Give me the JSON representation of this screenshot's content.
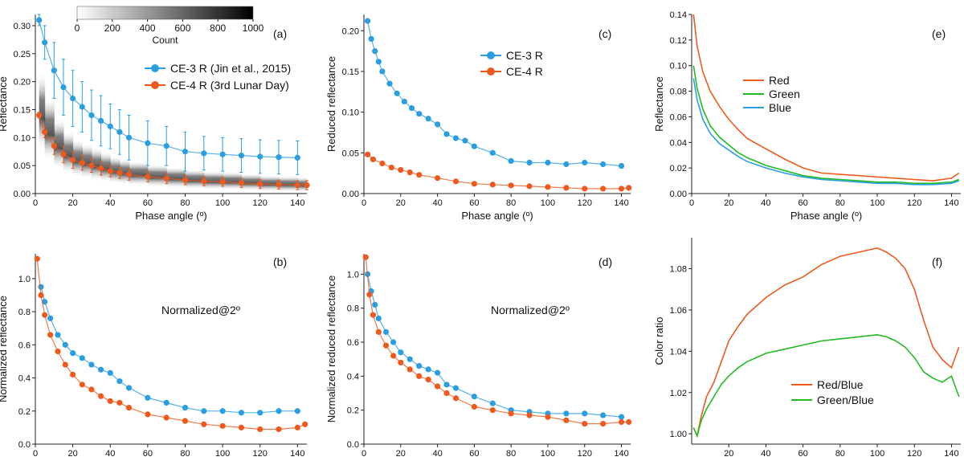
{
  "chart_data": [
    {
      "id": "a",
      "panel_label": "(a)",
      "type": "scatter",
      "xlabel": "Phase angle (º)",
      "ylabel": "Reflectance",
      "xlim": [
        0,
        145
      ],
      "ylim": [
        0,
        0.32
      ],
      "xticks": [
        0,
        20,
        40,
        60,
        80,
        100,
        120,
        140
      ],
      "yticks": [
        0,
        0.05,
        0.1,
        0.15,
        0.2,
        0.25,
        0.3
      ],
      "yticklabels": [
        "0.00",
        "0.05",
        "0.10",
        "0.15",
        "0.20",
        "0.25",
        "0.30"
      ],
      "colorbar": {
        "label": "Count",
        "ticks": [
          0,
          200,
          400,
          600,
          800,
          1000
        ]
      },
      "series": [
        {
          "name": "CE-3 R (Jin et al., 2015)",
          "color": "#2a9fe0",
          "x": [
            2,
            5,
            10,
            15,
            20,
            25,
            30,
            35,
            40,
            45,
            50,
            60,
            70,
            80,
            90,
            100,
            110,
            120,
            130,
            140
          ],
          "y": [
            0.31,
            0.27,
            0.22,
            0.19,
            0.17,
            0.155,
            0.14,
            0.13,
            0.12,
            0.11,
            0.1,
            0.09,
            0.085,
            0.075,
            0.072,
            0.07,
            0.068,
            0.066,
            0.065,
            0.064
          ],
          "err": [
            0.01,
            0.03,
            0.05,
            0.05,
            0.05,
            0.045,
            0.045,
            0.045,
            0.04,
            0.04,
            0.04,
            0.04,
            0.035,
            0.035,
            0.03,
            0.03,
            0.03,
            0.03,
            0.03,
            0.03
          ]
        },
        {
          "name": "CE-4 R (3rd Lunar Day)",
          "color": "#ee5a1e",
          "x": [
            2,
            5,
            10,
            15,
            20,
            25,
            30,
            35,
            40,
            45,
            50,
            60,
            70,
            80,
            90,
            100,
            110,
            120,
            130,
            140,
            145
          ],
          "y": [
            0.14,
            0.11,
            0.085,
            0.07,
            0.06,
            0.055,
            0.05,
            0.045,
            0.04,
            0.037,
            0.034,
            0.03,
            0.027,
            0.024,
            0.022,
            0.021,
            0.019,
            0.017,
            0.016,
            0.015,
            0.015
          ],
          "err": [
            0.005,
            0.01,
            0.015,
            0.015,
            0.015,
            0.013,
            0.012,
            0.012,
            0.01,
            0.01,
            0.01,
            0.009,
            0.009,
            0.008,
            0.008,
            0.008,
            0.008,
            0.008,
            0.008,
            0.008,
            0.008
          ]
        }
      ]
    },
    {
      "id": "b",
      "panel_label": "(b)",
      "type": "scatter",
      "xlabel": "Phase angle (º)",
      "ylabel": "Normalized reflectance",
      "annotation": "Normalized@2º",
      "xlim": [
        0,
        145
      ],
      "ylim": [
        0,
        1.15
      ],
      "xticks": [
        0,
        20,
        40,
        60,
        80,
        100,
        120,
        140
      ],
      "yticks": [
        0,
        0.2,
        0.4,
        0.6,
        0.8,
        1.0
      ],
      "yticklabels": [
        "0.0",
        "0.2",
        "0.4",
        "0.6",
        "0.8",
        "1.0"
      ],
      "series": [
        {
          "name": "CE-3",
          "color": "#2a9fe0",
          "x": [
            3,
            5,
            8,
            12,
            16,
            20,
            25,
            30,
            35,
            40,
            45,
            50,
            60,
            70,
            80,
            90,
            100,
            110,
            120,
            130,
            140
          ],
          "y": [
            0.95,
            0.86,
            0.76,
            0.66,
            0.6,
            0.55,
            0.52,
            0.48,
            0.45,
            0.43,
            0.38,
            0.34,
            0.28,
            0.25,
            0.22,
            0.2,
            0.2,
            0.19,
            0.19,
            0.2,
            0.2
          ]
        },
        {
          "name": "CE-4",
          "color": "#ee5a1e",
          "x": [
            1,
            3,
            5,
            8,
            12,
            16,
            20,
            25,
            30,
            35,
            40,
            45,
            50,
            60,
            70,
            80,
            90,
            100,
            110,
            120,
            130,
            140,
            144
          ],
          "y": [
            1.12,
            0.9,
            0.78,
            0.66,
            0.56,
            0.48,
            0.42,
            0.36,
            0.33,
            0.29,
            0.26,
            0.25,
            0.22,
            0.18,
            0.16,
            0.14,
            0.12,
            0.11,
            0.1,
            0.09,
            0.09,
            0.1,
            0.12
          ]
        }
      ]
    },
    {
      "id": "c",
      "panel_label": "(c)",
      "type": "scatter",
      "xlabel": "Phase angle (º)",
      "ylabel": "Reduced reflectance",
      "xlim": [
        0,
        145
      ],
      "ylim": [
        0,
        0.22
      ],
      "xticks": [
        0,
        20,
        40,
        60,
        80,
        100,
        120,
        140
      ],
      "yticks": [
        0,
        0.05,
        0.1,
        0.15,
        0.2
      ],
      "yticklabels": [
        "0.00",
        "0.05",
        "0.10",
        "0.15",
        "0.20"
      ],
      "series": [
        {
          "name": "CE-3 R",
          "color": "#2a9fe0",
          "x": [
            2,
            4,
            6,
            8,
            10,
            14,
            18,
            22,
            26,
            30,
            35,
            40,
            45,
            50,
            55,
            60,
            70,
            80,
            90,
            100,
            110,
            120,
            130,
            140
          ],
          "y": [
            0.212,
            0.19,
            0.175,
            0.162,
            0.15,
            0.135,
            0.123,
            0.113,
            0.105,
            0.098,
            0.092,
            0.085,
            0.073,
            0.068,
            0.065,
            0.058,
            0.05,
            0.04,
            0.038,
            0.038,
            0.036,
            0.038,
            0.036,
            0.034
          ]
        },
        {
          "name": "CE-4 R",
          "color": "#ee5a1e",
          "x": [
            2,
            5,
            10,
            15,
            20,
            25,
            30,
            40,
            50,
            60,
            70,
            80,
            90,
            100,
            110,
            120,
            130,
            140,
            144
          ],
          "y": [
            0.048,
            0.042,
            0.037,
            0.032,
            0.029,
            0.026,
            0.023,
            0.019,
            0.015,
            0.012,
            0.011,
            0.01,
            0.009,
            0.008,
            0.007,
            0.006,
            0.006,
            0.006,
            0.007
          ]
        }
      ]
    },
    {
      "id": "d",
      "panel_label": "(d)",
      "type": "scatter",
      "xlabel": "Phase angle (º)",
      "ylabel": "Normalized reduced reflectance",
      "annotation": "Normalized@2º",
      "xlim": [
        0,
        145
      ],
      "ylim": [
        0,
        1.12
      ],
      "xticks": [
        0,
        20,
        40,
        60,
        80,
        100,
        120,
        140
      ],
      "yticks": [
        0,
        0.2,
        0.4,
        0.6,
        0.8,
        1.0
      ],
      "yticklabels": [
        "0.0",
        "0.2",
        "0.4",
        "0.6",
        "0.8",
        "1.0"
      ],
      "series": [
        {
          "name": "CE-3",
          "color": "#2a9fe0",
          "x": [
            2,
            4,
            6,
            8,
            12,
            16,
            20,
            25,
            30,
            35,
            40,
            45,
            50,
            60,
            70,
            80,
            90,
            100,
            110,
            120,
            130,
            140
          ],
          "y": [
            1.0,
            0.9,
            0.82,
            0.74,
            0.66,
            0.6,
            0.54,
            0.5,
            0.46,
            0.44,
            0.42,
            0.35,
            0.33,
            0.28,
            0.24,
            0.2,
            0.19,
            0.18,
            0.18,
            0.18,
            0.17,
            0.16
          ]
        },
        {
          "name": "CE-4",
          "color": "#ee5a1e",
          "x": [
            1,
            3,
            5,
            8,
            12,
            16,
            20,
            25,
            30,
            35,
            40,
            45,
            50,
            60,
            70,
            80,
            90,
            100,
            110,
            120,
            130,
            140,
            144
          ],
          "y": [
            1.1,
            0.88,
            0.76,
            0.66,
            0.58,
            0.52,
            0.48,
            0.44,
            0.4,
            0.38,
            0.34,
            0.3,
            0.27,
            0.22,
            0.2,
            0.18,
            0.17,
            0.16,
            0.14,
            0.12,
            0.12,
            0.13,
            0.13
          ]
        }
      ]
    },
    {
      "id": "e",
      "panel_label": "(e)",
      "type": "line",
      "xlabel": "Phase angle (º)",
      "ylabel": "Reflectance",
      "xlim": [
        0,
        145
      ],
      "ylim": [
        0,
        0.14
      ],
      "xticks": [
        0,
        20,
        40,
        60,
        80,
        100,
        120,
        140
      ],
      "yticks": [
        0,
        0.02,
        0.04,
        0.06,
        0.08,
        0.1,
        0.12,
        0.14
      ],
      "yticklabels": [
        "0.00",
        "0.02",
        "0.04",
        "0.06",
        "0.08",
        "0.10",
        "0.12",
        "0.14"
      ],
      "series": [
        {
          "name": "Red",
          "color": "#ee5a1e",
          "x": [
            1,
            3,
            6,
            10,
            15,
            20,
            25,
            30,
            40,
            50,
            60,
            70,
            80,
            90,
            100,
            110,
            120,
            130,
            140,
            144
          ],
          "y": [
            0.14,
            0.115,
            0.095,
            0.08,
            0.068,
            0.058,
            0.05,
            0.043,
            0.035,
            0.027,
            0.02,
            0.016,
            0.015,
            0.014,
            0.013,
            0.012,
            0.011,
            0.01,
            0.012,
            0.016
          ]
        },
        {
          "name": "Green",
          "color": "#22bb22",
          "x": [
            1,
            3,
            6,
            10,
            15,
            20,
            25,
            30,
            40,
            50,
            60,
            70,
            80,
            90,
            100,
            110,
            120,
            130,
            140,
            144
          ],
          "y": [
            0.1,
            0.082,
            0.066,
            0.053,
            0.044,
            0.038,
            0.032,
            0.028,
            0.022,
            0.018,
            0.014,
            0.012,
            0.011,
            0.01,
            0.009,
            0.009,
            0.008,
            0.008,
            0.009,
            0.011
          ]
        },
        {
          "name": "Blue",
          "color": "#2a9fe0",
          "x": [
            1,
            3,
            6,
            10,
            15,
            20,
            25,
            30,
            40,
            50,
            60,
            70,
            80,
            90,
            100,
            110,
            120,
            130,
            140,
            144
          ],
          "y": [
            0.09,
            0.073,
            0.058,
            0.047,
            0.039,
            0.034,
            0.029,
            0.025,
            0.02,
            0.016,
            0.013,
            0.011,
            0.01,
            0.009,
            0.008,
            0.008,
            0.007,
            0.007,
            0.008,
            0.01
          ]
        }
      ]
    },
    {
      "id": "f",
      "panel_label": "(f)",
      "type": "line",
      "xlabel": "Phase angle (º)",
      "ylabel": "Color ratio",
      "xlim": [
        0,
        145
      ],
      "ylim": [
        0.995,
        1.095
      ],
      "xticks": [
        20,
        40,
        60,
        80,
        100,
        120,
        140
      ],
      "yticks": [
        1.0,
        1.02,
        1.04,
        1.06,
        1.08
      ],
      "yticklabels": [
        "1.00",
        "1.02",
        "1.04",
        "1.06",
        "1.08"
      ],
      "series": [
        {
          "name": "Red/Blue",
          "color": "#ee5a1e",
          "x": [
            1,
            3,
            5,
            8,
            12,
            16,
            20,
            25,
            30,
            35,
            40,
            50,
            60,
            70,
            80,
            90,
            100,
            105,
            110,
            115,
            120,
            125,
            130,
            135,
            140,
            144
          ],
          "y": [
            1.003,
            0.999,
            1.008,
            1.018,
            1.025,
            1.035,
            1.045,
            1.052,
            1.058,
            1.062,
            1.066,
            1.072,
            1.076,
            1.082,
            1.086,
            1.088,
            1.09,
            1.088,
            1.085,
            1.08,
            1.07,
            1.055,
            1.042,
            1.036,
            1.032,
            1.042
          ]
        },
        {
          "name": "Green/Blue",
          "color": "#22bb22",
          "x": [
            1,
            3,
            5,
            8,
            12,
            16,
            20,
            25,
            30,
            35,
            40,
            50,
            60,
            70,
            80,
            90,
            100,
            105,
            110,
            115,
            120,
            125,
            130,
            135,
            140,
            144
          ],
          "y": [
            1.003,
            0.999,
            1.006,
            1.012,
            1.018,
            1.024,
            1.028,
            1.032,
            1.035,
            1.037,
            1.039,
            1.041,
            1.043,
            1.045,
            1.046,
            1.047,
            1.048,
            1.047,
            1.045,
            1.042,
            1.037,
            1.03,
            1.027,
            1.025,
            1.028,
            1.018
          ]
        }
      ]
    }
  ]
}
